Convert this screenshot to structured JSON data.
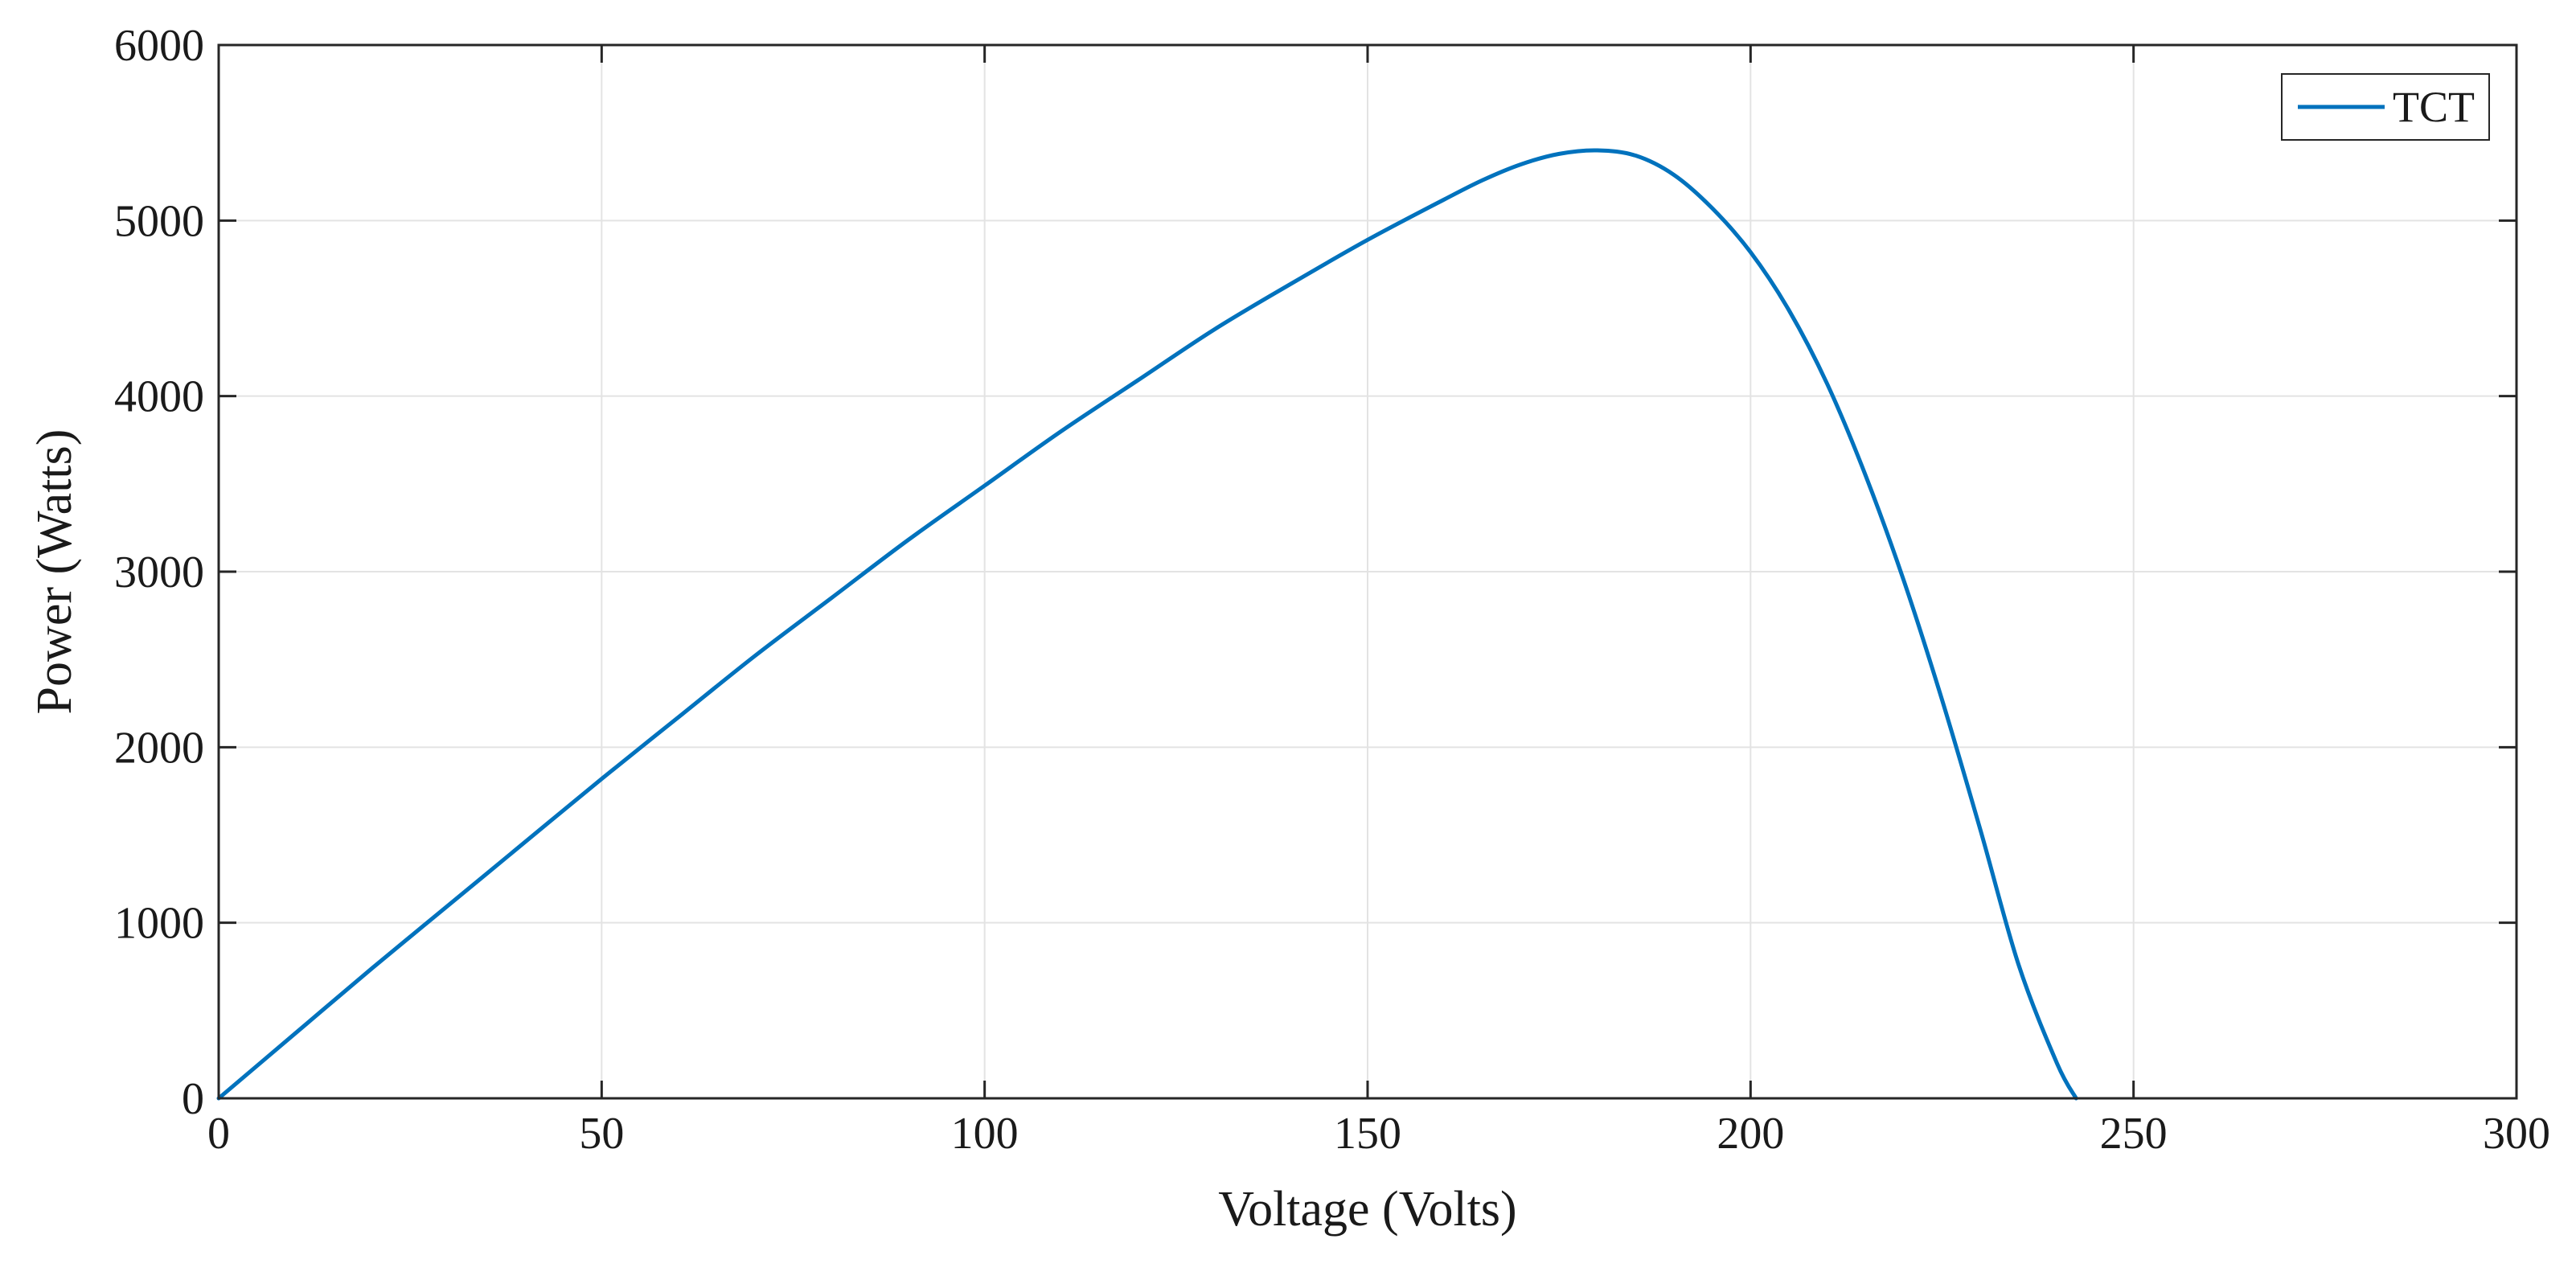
{
  "chart_data": {
    "type": "line",
    "title": "",
    "xlabel": "Voltage (Volts)",
    "ylabel": "Power (Watts)",
    "xlim": [
      0,
      300
    ],
    "ylim": [
      0,
      6000
    ],
    "x_ticks": [
      0,
      50,
      100,
      150,
      200,
      250,
      300
    ],
    "y_ticks": [
      0,
      1000,
      2000,
      3000,
      4000,
      5000,
      6000
    ],
    "grid": true,
    "legend_position": "top-right",
    "series": [
      {
        "name": "TCT",
        "color": "#0072BD",
        "x": [
          0,
          10,
          20,
          30,
          40,
          50,
          60,
          70,
          80,
          90,
          100,
          110,
          120,
          130,
          140,
          150,
          160,
          165,
          170,
          175,
          180,
          185,
          190,
          195,
          200,
          205,
          210,
          215,
          220,
          225,
          230,
          235,
          240,
          242.5
        ],
        "y": [
          0,
          370,
          740,
          1100,
          1460,
          1820,
          2170,
          2520,
          2850,
          3180,
          3490,
          3800,
          4090,
          4380,
          4640,
          4890,
          5120,
          5230,
          5320,
          5380,
          5400,
          5370,
          5260,
          5070,
          4820,
          4490,
          4070,
          3550,
          2950,
          2270,
          1530,
          760,
          200,
          0
        ]
      }
    ]
  }
}
